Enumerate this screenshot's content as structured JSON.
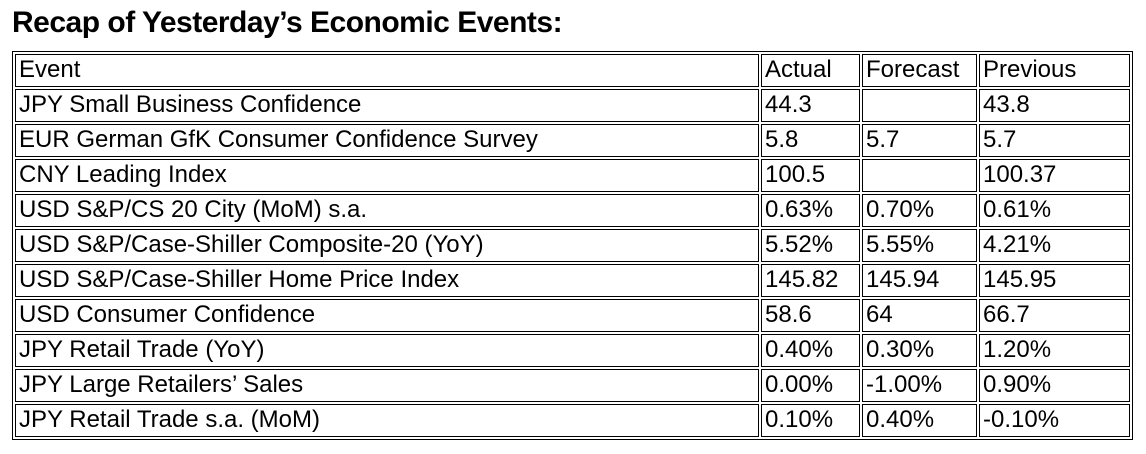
{
  "page": {
    "title": "Recap of Yesterday’s Economic Events:"
  },
  "table": {
    "columns": [
      "Event",
      "Actual",
      "Forecast",
      "Previous"
    ],
    "rows": [
      {
        "event": "JPY Small Business Confidence",
        "actual": "44.3",
        "forecast": "",
        "previous": "43.8"
      },
      {
        "event": "EUR German GfK Consumer Confidence Survey",
        "actual": "5.8",
        "forecast": "5.7",
        "previous": "5.7"
      },
      {
        "event": "CNY Leading Index",
        "actual": "100.5",
        "forecast": "",
        "previous": "100.37"
      },
      {
        "event": "USD S&P/CS 20 City (MoM) s.a.",
        "actual": "0.63%",
        "forecast": "0.70%",
        "previous": "0.61%"
      },
      {
        "event": "USD S&P/Case-Shiller Composite-20 (YoY)",
        "actual": "5.52%",
        "forecast": "5.55%",
        "previous": "4.21%"
      },
      {
        "event": "USD S&P/Case-Shiller Home Price Index",
        "actual": "145.82",
        "forecast": "145.94",
        "previous": "145.95"
      },
      {
        "event": "USD Consumer Confidence",
        "actual": "58.6",
        "forecast": "64",
        "previous": "66.7"
      },
      {
        "event": "JPY Retail Trade (YoY)",
        "actual": "0.40%",
        "forecast": "0.30%",
        "previous": "1.20%"
      },
      {
        "event": "JPY Large Retailers’ Sales",
        "actual": "0.00%",
        "forecast": "-1.00%",
        "previous": "0.90%"
      },
      {
        "event": "JPY Retail Trade s.a. (MoM)",
        "actual": "0.10%",
        "forecast": "0.40%",
        "previous": "-0.10%"
      }
    ]
  },
  "colors": {
    "text": "#000000",
    "border": "#000000",
    "background": "#ffffff"
  }
}
